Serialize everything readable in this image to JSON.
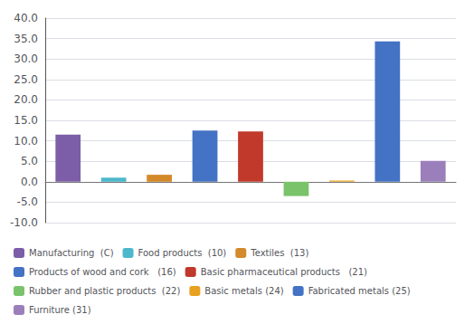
{
  "chart_data": {
    "type": "bar",
    "categories": [
      "Manufacturing  (C)",
      "Food products  (10)",
      "Textiles  (13)",
      "Products of wood and cork   (16)",
      "Basic pharmaceutical products   (21)",
      "Rubber and plastic products  (22)",
      "Basic metals (24)",
      "Fabricated metals (25)",
      "Furniture (31)"
    ],
    "values": [
      11.5,
      1.0,
      1.7,
      12.5,
      12.3,
      -3.5,
      0.3,
      34.3,
      5.1
    ],
    "colors": [
      "#7B5EA7",
      "#4DB8CC",
      "#D4892A",
      "#4472C4",
      "#C0392B",
      "#7AC36A",
      "#E8A020",
      "#4472C4",
      "#9B7FBB"
    ],
    "ylim": [
      -10.0,
      40.0
    ],
    "yticks": [
      {
        "value": -10,
        "label": "-10.0"
      },
      {
        "value": -5,
        "label": "-5.0"
      },
      {
        "value": 0,
        "label": "0.0"
      },
      {
        "value": 5,
        "label": "5.0"
      },
      {
        "value": 10,
        "label": "10.0"
      },
      {
        "value": 15,
        "label": "15.0"
      },
      {
        "value": 20,
        "label": "20.0"
      },
      {
        "value": 25,
        "label": "25.0"
      },
      {
        "value": 30,
        "label": "30.0"
      },
      {
        "value": 35,
        "label": "35.0"
      },
      {
        "value": 40,
        "label": "40.0"
      }
    ],
    "grid": true,
    "legend": "bottom",
    "tick_labels": "y"
  }
}
